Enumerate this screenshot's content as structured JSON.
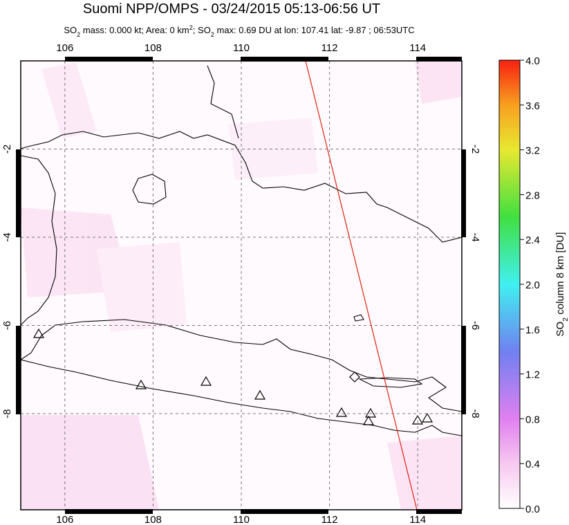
{
  "header": {
    "title": "Suomi NPP/OMPS - 03/24/2015 05:13-06:56 UT",
    "subtitle": [
      "SO",
      "2",
      " mass: 0.000 kt; Area: 0 km",
      "2",
      "; SO",
      "2",
      " max: 0.69 DU at lon: 107.41 lat: -9.87 ; 06:53UTC"
    ]
  },
  "map": {
    "lonlim": [
      105,
      115
    ],
    "latlim": [
      -10.18,
      0
    ],
    "lon_ticks": [
      106,
      108,
      110,
      112,
      114
    ],
    "lat_ticks": [
      -2,
      -4,
      -6,
      -8
    ],
    "grid": true
  },
  "colorbar": {
    "lim": [
      0,
      4
    ],
    "ticks": [
      {
        "value": 0,
        "label": "0.0"
      },
      {
        "value": 0.4,
        "label": "0.4"
      },
      {
        "value": 0.8,
        "label": "0.8"
      },
      {
        "value": 1.2,
        "label": "1.2"
      },
      {
        "value": 1.6,
        "label": "1.6"
      },
      {
        "value": 2.0,
        "label": "2.0"
      },
      {
        "value": 2.4,
        "label": "2.4"
      },
      {
        "value": 2.8,
        "label": "2.8"
      },
      {
        "value": 3.2,
        "label": "3.2"
      },
      {
        "value": 3.6,
        "label": "3.6"
      },
      {
        "value": 4.0,
        "label": "4.0"
      }
    ],
    "label": [
      "SO",
      "2",
      " column 8 km [DU]"
    ]
  }
}
